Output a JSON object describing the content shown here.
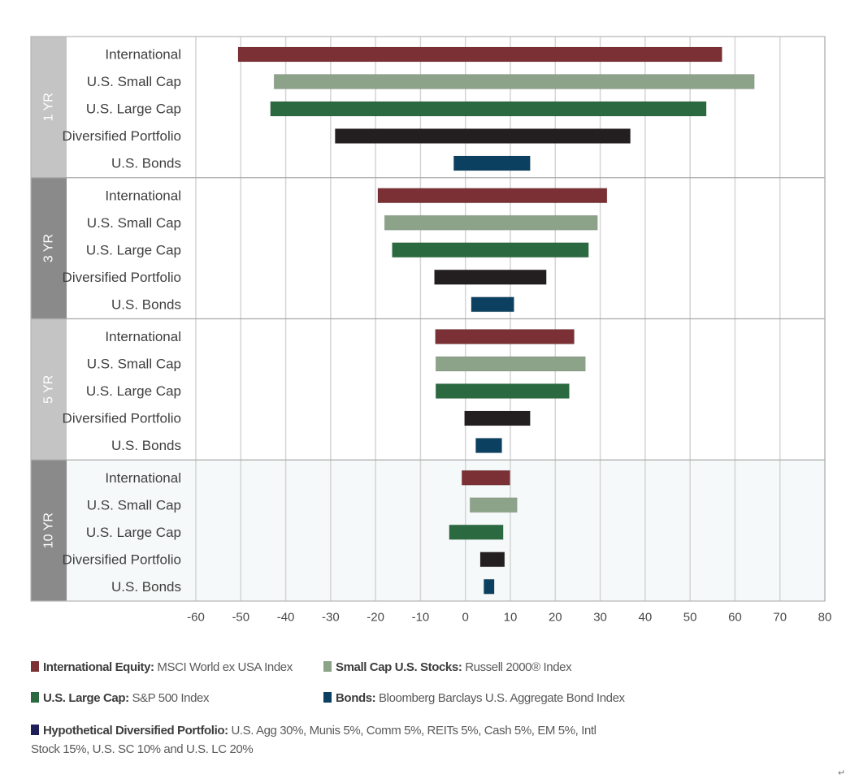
{
  "chart_data": {
    "type": "bar",
    "subtype": "floating-range-horizontal",
    "title": "",
    "xlabel": "",
    "ylabel": "",
    "xlim": [
      -60,
      80
    ],
    "xticks": [
      -60,
      -50,
      -40,
      -30,
      -20,
      -10,
      0,
      10,
      20,
      30,
      40,
      50,
      60,
      70,
      80
    ],
    "grid": true,
    "legend_position": "bottom",
    "categories": [
      "International",
      "U.S. Small Cap",
      "U.S. Large Cap",
      "Diversified Portfolio",
      "U.S. Bonds"
    ],
    "series_colors": {
      "International": "#7a3035",
      "U.S. Small Cap": "#8ca38a",
      "U.S. Large Cap": "#2b6a40",
      "Diversified Portfolio": "#231f20",
      "U.S. Bonds": "#0c4060"
    },
    "periods": [
      {
        "label": "1 YR",
        "band_color": "#c4c4c4",
        "background": "#ffffff",
        "ranges": [
          {
            "category": "International",
            "low": -50.6,
            "high": 57.1
          },
          {
            "category": "U.S. Small Cap",
            "low": -42.6,
            "high": 64.3
          },
          {
            "category": "U.S. Large Cap",
            "low": -43.4,
            "high": 53.6
          },
          {
            "category": "Diversified Portfolio",
            "low": -29.0,
            "high": 36.7
          },
          {
            "category": "U.S. Bonds",
            "low": -2.6,
            "high": 14.4
          }
        ]
      },
      {
        "label": "3 YR",
        "band_color": "#8a8a8a",
        "background": "#ffffff",
        "ranges": [
          {
            "category": "International",
            "low": -19.5,
            "high": 31.5
          },
          {
            "category": "U.S. Small Cap",
            "low": -18.0,
            "high": 29.4
          },
          {
            "category": "U.S. Large Cap",
            "low": -16.3,
            "high": 27.4
          },
          {
            "category": "Diversified Portfolio",
            "low": -6.9,
            "high": 18.0
          },
          {
            "category": "U.S. Bonds",
            "low": 1.3,
            "high": 10.8
          }
        ]
      },
      {
        "label": "5 YR",
        "band_color": "#c4c4c4",
        "background": "#ffffff",
        "ranges": [
          {
            "category": "International",
            "low": -6.7,
            "high": 24.2
          },
          {
            "category": "U.S. Small Cap",
            "low": -6.6,
            "high": 26.7
          },
          {
            "category": "U.S. Large Cap",
            "low": -6.6,
            "high": 23.1
          },
          {
            "category": "Diversified Portfolio",
            "low": -0.2,
            "high": 14.4
          },
          {
            "category": "U.S. Bonds",
            "low": 2.3,
            "high": 8.1
          }
        ]
      },
      {
        "label": "10 YR",
        "band_color": "#8a8a8a",
        "background": "#f6f9f9",
        "ranges": [
          {
            "category": "International",
            "low": -0.8,
            "high": 9.9
          },
          {
            "category": "U.S. Small Cap",
            "low": 1.0,
            "high": 11.5
          },
          {
            "category": "U.S. Large Cap",
            "low": -3.6,
            "high": 8.4
          },
          {
            "category": "Diversified Portfolio",
            "low": 3.3,
            "high": 8.7
          },
          {
            "category": "U.S. Bonds",
            "low": 4.1,
            "high": 6.4
          }
        ]
      }
    ]
  },
  "legend": [
    {
      "key": "international",
      "color": "#7a3035",
      "bold": "International Equity:",
      "text": " MSCI World ex USA Index"
    },
    {
      "key": "small-cap",
      "color": "#8ca38a",
      "bold": "Small Cap U.S. Stocks:",
      "text": " Russell 2000® Index"
    },
    {
      "key": "large-cap",
      "color": "#2b6a40",
      "bold": "U.S. Large Cap:",
      "text": " S&P 500 Index"
    },
    {
      "key": "bonds",
      "color": "#0c4060",
      "bold": "Bonds:",
      "text": " Bloomberg Barclays U.S. Aggregate Bond Index"
    },
    {
      "key": "diversified",
      "color": "#1f1f5a",
      "bold": "Hypothetical Diversified Portfolio:",
      "text": " U.S. Agg 30%, Munis 5%, Comm 5%, REITs 5%, Cash 5%, EM 5%, Intl Stock 15%, U.S. SC 10% and U.S. LC 20%"
    }
  ],
  "corner_glyph": "↵"
}
